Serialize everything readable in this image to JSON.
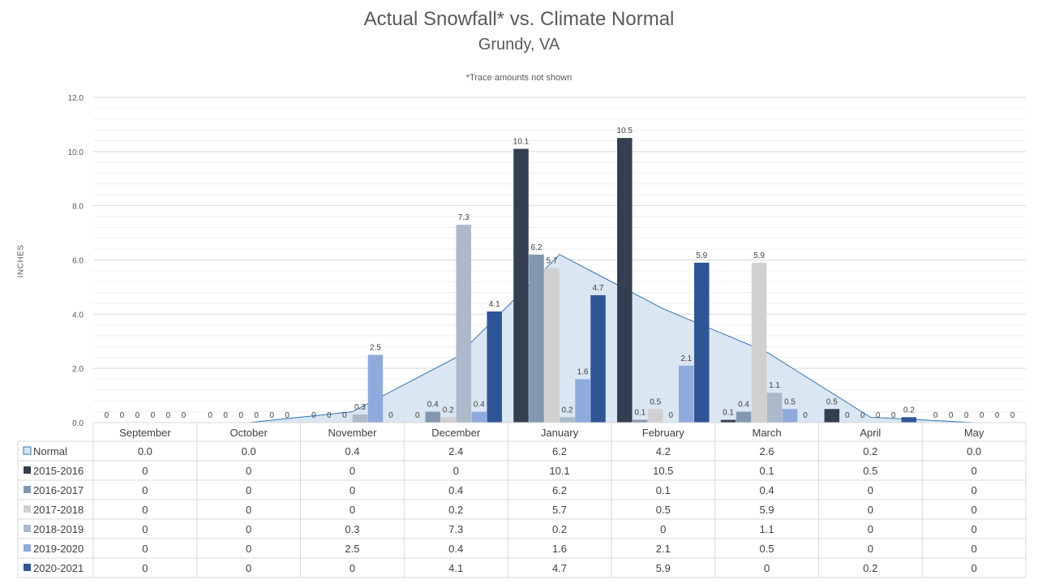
{
  "chart_data": {
    "type": "bar",
    "title": "Actual Snowfall* vs. Climate Normal",
    "subtitle": "Grundy, VA",
    "note": "*Trace amounts not shown",
    "ylabel": "INCHES",
    "ylim": [
      0,
      12
    ],
    "yticks": [
      "0.0",
      "2.0",
      "4.0",
      "6.0",
      "8.0",
      "10.0",
      "12.0"
    ],
    "grid": true,
    "legend_position": "data-table-left",
    "categories": [
      "September",
      "October",
      "November",
      "December",
      "January",
      "February",
      "March",
      "April",
      "May"
    ],
    "normal": {
      "name": "Normal",
      "type": "area",
      "color": "#dbe6f3",
      "line_color": "#2e75b6",
      "values": [
        0.0,
        0.0,
        0.4,
        2.4,
        6.2,
        4.2,
        2.6,
        0.2,
        0.0
      ],
      "table_values": [
        "0.0",
        "0.0",
        "0.4",
        "2.4",
        "6.2",
        "4.2",
        "2.6",
        "0.2",
        "0.0"
      ]
    },
    "series": [
      {
        "name": "2015-2016",
        "color": "#333f50",
        "values": [
          0,
          0,
          0,
          0,
          10.1,
          10.5,
          0.1,
          0.5,
          0
        ]
      },
      {
        "name": "2016-2017",
        "color": "#8497b0",
        "values": [
          0,
          0,
          0,
          0.4,
          6.2,
          0.1,
          0.4,
          0,
          0
        ]
      },
      {
        "name": "2017-2018",
        "color": "#d0d0d0",
        "values": [
          0,
          0,
          0,
          0.2,
          5.7,
          0.5,
          5.9,
          0,
          0
        ]
      },
      {
        "name": "2018-2019",
        "color": "#adb9ca",
        "values": [
          0,
          0,
          0.3,
          7.3,
          0.2,
          0,
          1.1,
          0,
          0
        ]
      },
      {
        "name": "2019-2020",
        "color": "#8faadc",
        "values": [
          0,
          0,
          2.5,
          0.4,
          1.6,
          2.1,
          0.5,
          0,
          0
        ]
      },
      {
        "name": "2020-2021",
        "color": "#2f5597",
        "values": [
          0,
          0,
          0,
          4.1,
          4.7,
          5.9,
          0,
          0.2,
          0
        ]
      }
    ]
  }
}
